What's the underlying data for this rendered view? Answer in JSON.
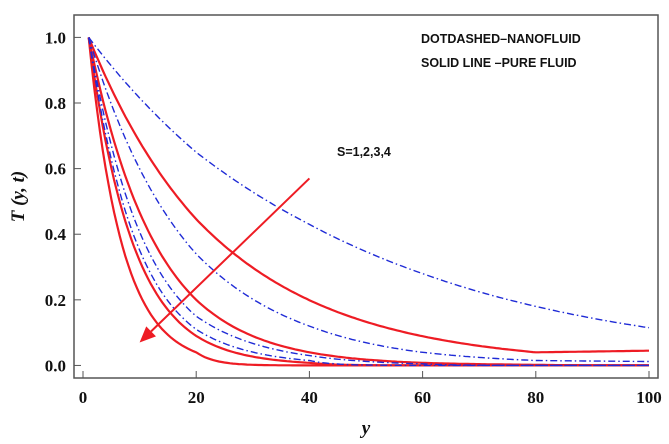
{
  "chart_data": {
    "type": "line",
    "title": "",
    "xlabel": "y",
    "ylabel": "T (y, t)",
    "xlim": [
      0,
      100
    ],
    "ylim": [
      0,
      1.0
    ],
    "x_ticks": [
      "0",
      "20",
      "40",
      "60",
      "80",
      "100"
    ],
    "y_ticks": [
      "0.0",
      "0.2",
      "0.4",
      "0.6",
      "0.8",
      "1.0"
    ],
    "x_tick_values": [
      0,
      20,
      40,
      60,
      80,
      100
    ],
    "y_tick_values": [
      0,
      0.2,
      0.4,
      0.6,
      0.8,
      1.0
    ],
    "legend_lines": [
      "DOTDASHED–NANOFLUID",
      "SOLID LINE –PURE FLUID"
    ],
    "annotation": "S=1,2,3,4",
    "arrow": {
      "from": [
        40,
        0.57
      ],
      "to": [
        10,
        0.07
      ],
      "color": "#ee1c24"
    },
    "x_start": 1,
    "series": [
      {
        "style": "solid",
        "color": "#ee1c24",
        "y_at_1": 1.0,
        "values_at": {
          "20": 0.446,
          "40": 0.199,
          "60": 0.089,
          "80": 0.04,
          "100": 0.045
        }
      },
      {
        "style": "solid",
        "color": "#ee1c24",
        "y_at_1": 1.0,
        "values_at": {
          "20": 0.2,
          "40": 0.04,
          "60": 0.008,
          "80": 0.002,
          "100": 0.0
        }
      },
      {
        "style": "solid",
        "color": "#ee1c24",
        "y_at_1": 1.0,
        "values_at": {
          "20": 0.09,
          "40": 0.008,
          "60": 0.0,
          "80": 0.0,
          "100": 0.0
        }
      },
      {
        "style": "solid",
        "color": "#ee1c24",
        "y_at_1": 1.0,
        "values_at": {
          "20": 0.04,
          "40": 0.0,
          "60": 0.0,
          "80": 0.0,
          "100": 0.0
        }
      },
      {
        "style": "dotdash",
        "color": "#1f2bd6",
        "y_at_1": 1.0,
        "values_at": {
          "20": 0.65,
          "40": 0.43,
          "60": 0.28,
          "80": 0.18,
          "100": 0.115
        }
      },
      {
        "style": "dotdash",
        "color": "#1f2bd6",
        "y_at_1": 1.0,
        "values_at": {
          "20": 0.34,
          "40": 0.12,
          "60": 0.04,
          "80": 0.015,
          "100": 0.012
        }
      },
      {
        "style": "dotdash",
        "color": "#1f2bd6",
        "y_at_1": 1.0,
        "values_at": {
          "20": 0.15,
          "40": 0.03,
          "60": 0.005,
          "80": 0.0,
          "100": 0.0
        }
      },
      {
        "style": "dotdash",
        "color": "#1f2bd6",
        "y_at_1": 1.0,
        "values_at": {
          "20": 0.11,
          "40": 0.015,
          "60": 0.0,
          "80": 0.0,
          "100": 0.0
        }
      }
    ]
  }
}
